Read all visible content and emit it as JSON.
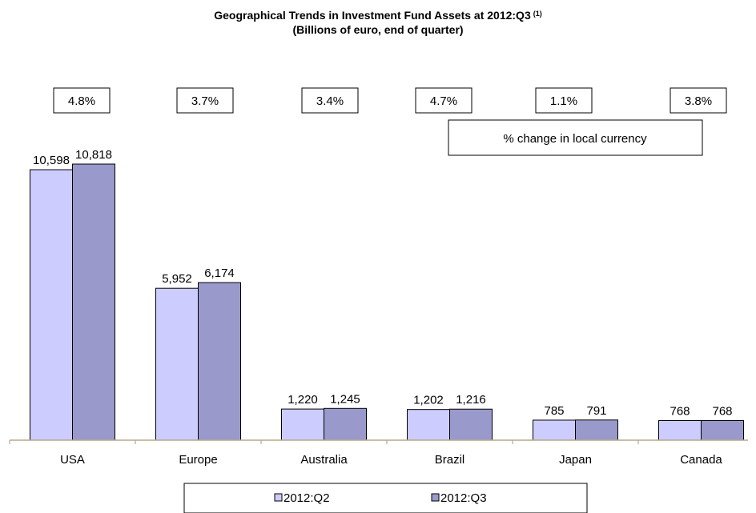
{
  "colors": {
    "series_q2": "#ccccff",
    "series_q3": "#9999cc",
    "axis": "#b8a98a"
  },
  "chart_data": {
    "type": "bar",
    "title": "Geographical Trends in Investment Fund Assets at 2012:Q3",
    "title_superscript": "(1)",
    "subtitle": "(Billions of euro, end of quarter)",
    "categories": [
      "USA",
      "Europe",
      "Australia",
      "Brazil",
      "Japan",
      "Canada"
    ],
    "series": [
      {
        "name": "2012:Q2",
        "values": [
          10598,
          5952,
          1220,
          1202,
          785,
          768
        ],
        "labels": [
          "10,598",
          "5,952",
          "1,220",
          "1,202",
          "785",
          "768"
        ]
      },
      {
        "name": "2012:Q3",
        "values": [
          10818,
          6174,
          1245,
          1216,
          791,
          768
        ],
        "labels": [
          "10,818",
          "6,174",
          "1,245",
          "1,216",
          "791",
          "768"
        ]
      }
    ],
    "pct_change": [
      "4.8%",
      "3.7%",
      "3.4%",
      "4.7%",
      "1.1%",
      "3.8%"
    ],
    "pct_change_note": "% change in local currency",
    "ylim": [
      0,
      12700
    ],
    "grid": false,
    "legend_position": "bottom"
  }
}
